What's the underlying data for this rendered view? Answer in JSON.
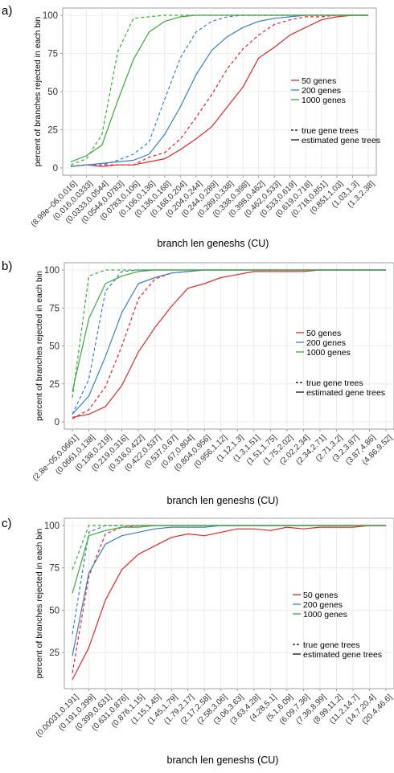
{
  "colors": {
    "series_50": "#e8262a",
    "series_200": "#3a7fc2",
    "series_1000": "#3cab3c",
    "grid": "#ececec",
    "axis": "#888888"
  },
  "chart_data": [
    {
      "panel": "a)",
      "type": "line",
      "xlabel": "branch len geneshs (CU)",
      "ylabel": "percent of branches rejected in each bin",
      "ylim": [
        0,
        100
      ],
      "yticks": [
        0,
        25,
        50,
        75,
        100
      ],
      "grid": true,
      "legend_position": "right",
      "legend": {
        "series": [
          "50 genes",
          "200 genes",
          "1000 genes"
        ],
        "linetypes": [
          "true gene trees",
          "estimated gene trees"
        ]
      },
      "categories": [
        "(8.99e−06,0.016]",
        "(0.016,0.0333]",
        "(0.0333,0.0544]",
        "(0.0544,0.0783]",
        "(0.0783,0.106]",
        "(0.106,0.136]",
        "(0.136,0.168]",
        "(0.168,0.204]",
        "(0.204,0.244]",
        "(0.244,0.289]",
        "(0.289,0.338]",
        "(0.338,0.398]",
        "(0.398,0.462]",
        "(0.462,0.533]",
        "(0.533,0.619]",
        "(0.619,0.718]",
        "(0.718,0.851]",
        "(0.851,1.03]",
        "(1.03,1.3]",
        "(1.3,2.38]"
      ],
      "series": [
        {
          "name": "50 genes",
          "tree": "estimated gene trees",
          "values": [
            1,
            2,
            1,
            2,
            2,
            4,
            6,
            12,
            19,
            27,
            40,
            53,
            72,
            79,
            87,
            92,
            97,
            99,
            100,
            100
          ]
        },
        {
          "name": "50 genes",
          "tree": "true gene trees",
          "values": [
            1,
            2,
            2,
            2,
            2,
            7,
            10,
            19,
            33,
            48,
            65,
            78,
            87,
            94,
            97,
            99,
            99,
            100,
            100,
            100
          ]
        },
        {
          "name": "200 genes",
          "tree": "estimated gene trees",
          "values": [
            1,
            2,
            3,
            4,
            5,
            9,
            22,
            40,
            61,
            77,
            86,
            92,
            96,
            98,
            99,
            100,
            100,
            100,
            100,
            100
          ]
        },
        {
          "name": "200 genes",
          "tree": "true gene trees",
          "values": [
            1,
            2,
            2,
            5,
            9,
            17,
            45,
            72,
            89,
            96,
            99,
            100,
            100,
            100,
            100,
            100,
            100,
            100,
            100,
            100
          ]
        },
        {
          "name": "1000 genes",
          "tree": "estimated gene trees",
          "values": [
            4,
            8,
            15,
            44,
            71,
            89,
            96,
            99,
            100,
            100,
            100,
            100,
            100,
            100,
            100,
            100,
            100,
            100,
            100,
            100
          ]
        },
        {
          "name": "1000 genes",
          "tree": "true gene trees",
          "values": [
            2,
            6,
            22,
            76,
            98,
            99,
            100,
            100,
            100,
            100,
            100,
            100,
            100,
            100,
            100,
            100,
            100,
            100,
            100,
            100
          ]
        }
      ]
    },
    {
      "panel": "b)",
      "type": "line",
      "xlabel": "branch len geneshs (CU)",
      "ylabel": "percent of branches rejected in each bin",
      "ylim": [
        0,
        100
      ],
      "yticks": [
        0,
        25,
        50,
        75,
        100
      ],
      "grid": true,
      "legend_position": "right",
      "legend": {
        "series": [
          "50 genes",
          "200 genes",
          "1000 genes"
        ],
        "linetypes": [
          "true gene trees",
          "estimated gene trees"
        ]
      },
      "categories": [
        "(2.8e−05,0.0661]",
        "(0.0661,0.138]",
        "(0.138,0.219]",
        "(0.219,0.316]",
        "(0.316,0.422]",
        "(0.422,0.537]",
        "(0.537,0.67]",
        "(0.67,0.804]",
        "(0.804,0.956]",
        "(0.956,1.12]",
        "(1.12,1.3]",
        "(1.3,1.51]",
        "(1.51,1.75]",
        "(1.75,2.02]",
        "(2.02,2.34]",
        "(2.34,2.71]",
        "(2.71,3.2]",
        "(3.2,3.87]",
        "(3.87,4.86]",
        "(4.86,9.52]"
      ],
      "series": [
        {
          "name": "50 genes",
          "tree": "estimated gene trees",
          "values": [
            3,
            5,
            10,
            24,
            46,
            62,
            76,
            88,
            91,
            95,
            97,
            99,
            99,
            99,
            99,
            100,
            100,
            100,
            100,
            100
          ]
        },
        {
          "name": "50 genes",
          "tree": "true gene trees",
          "values": [
            2,
            8,
            23,
            50,
            81,
            94,
            98,
            99,
            100,
            100,
            100,
            100,
            100,
            100,
            100,
            100,
            100,
            100,
            100,
            100
          ]
        },
        {
          "name": "200 genes",
          "tree": "estimated gene trees",
          "values": [
            5,
            17,
            43,
            72,
            91,
            95,
            98,
            99,
            100,
            100,
            100,
            100,
            100,
            100,
            100,
            100,
            100,
            100,
            100,
            100
          ]
        },
        {
          "name": "200 genes",
          "tree": "true gene trees",
          "values": [
            5,
            28,
            86,
            99,
            100,
            100,
            100,
            100,
            100,
            100,
            100,
            100,
            100,
            100,
            100,
            100,
            100,
            100,
            100,
            100
          ]
        },
        {
          "name": "1000 genes",
          "tree": "estimated gene trees",
          "values": [
            20,
            68,
            91,
            96,
            99,
            100,
            100,
            100,
            100,
            100,
            100,
            100,
            100,
            100,
            100,
            100,
            100,
            100,
            100,
            100
          ]
        },
        {
          "name": "1000 genes",
          "tree": "true gene trees",
          "values": [
            16,
            96,
            100,
            100,
            100,
            100,
            100,
            100,
            100,
            100,
            100,
            100,
            100,
            100,
            100,
            100,
            100,
            100,
            100,
            100
          ]
        }
      ]
    },
    {
      "panel": "c)",
      "type": "line",
      "xlabel": "branch len geneshs (CU)",
      "ylabel": "percent of branches rejected in each bin",
      "ylim": [
        8,
        100
      ],
      "yticks": [
        25,
        50,
        75,
        100
      ],
      "grid": true,
      "legend_position": "right",
      "legend": {
        "series": [
          "50 genes",
          "200 genes",
          "1000 genes"
        ],
        "linetypes": [
          "true gene trees",
          "estimated gene trees"
        ]
      },
      "categories": [
        "(0.00031,0.191]",
        "(0.191,0.399]",
        "(0.399,0.631]",
        "(0.631,0.876]",
        "(0.876,1.15]",
        "(1.15,1.45]",
        "(1.45,1.79]",
        "(1.79,2.17]",
        "(2.17,2.58]",
        "(2.58,3.06]",
        "(3.06,3.63]",
        "(3.63,4.28]",
        "(4.28,5.1]",
        "(5.1,6.09]",
        "(6.09,7.36]",
        "(7.36,8.99]",
        "(8.99,11.2]",
        "(11.2,14.7]",
        "(14.7,20.4]",
        "(20.4,46.6]"
      ],
      "series": [
        {
          "name": "50 genes",
          "tree": "estimated gene trees",
          "values": [
            9,
            28,
            56,
            74,
            83,
            88,
            93,
            95,
            94,
            96,
            98,
            98,
            97,
            99,
            98,
            99,
            99,
            99,
            100,
            100
          ]
        },
        {
          "name": "50 genes",
          "tree": "true gene trees",
          "values": [
            13,
            70,
            95,
            99,
            100,
            100,
            100,
            100,
            100,
            100,
            100,
            100,
            100,
            100,
            100,
            100,
            100,
            100,
            100,
            100
          ]
        },
        {
          "name": "200 genes",
          "tree": "estimated gene trees",
          "values": [
            23,
            72,
            89,
            94,
            96,
            98,
            99,
            99,
            99,
            100,
            100,
            100,
            100,
            100,
            100,
            100,
            100,
            100,
            100,
            100
          ]
        },
        {
          "name": "200 genes",
          "tree": "true gene trees",
          "values": [
            36,
            96,
            100,
            100,
            100,
            100,
            100,
            100,
            100,
            100,
            100,
            100,
            100,
            100,
            100,
            100,
            100,
            100,
            100,
            100
          ]
        },
        {
          "name": "1000 genes",
          "tree": "estimated gene trees",
          "values": [
            60,
            94,
            97,
            99,
            99,
            100,
            100,
            100,
            100,
            100,
            100,
            100,
            100,
            100,
            100,
            100,
            100,
            100,
            100,
            100
          ]
        },
        {
          "name": "1000 genes",
          "tree": "true gene trees",
          "values": [
            74,
            100,
            100,
            100,
            100,
            100,
            100,
            100,
            100,
            100,
            100,
            100,
            100,
            100,
            100,
            100,
            100,
            100,
            100,
            100
          ]
        }
      ]
    }
  ]
}
